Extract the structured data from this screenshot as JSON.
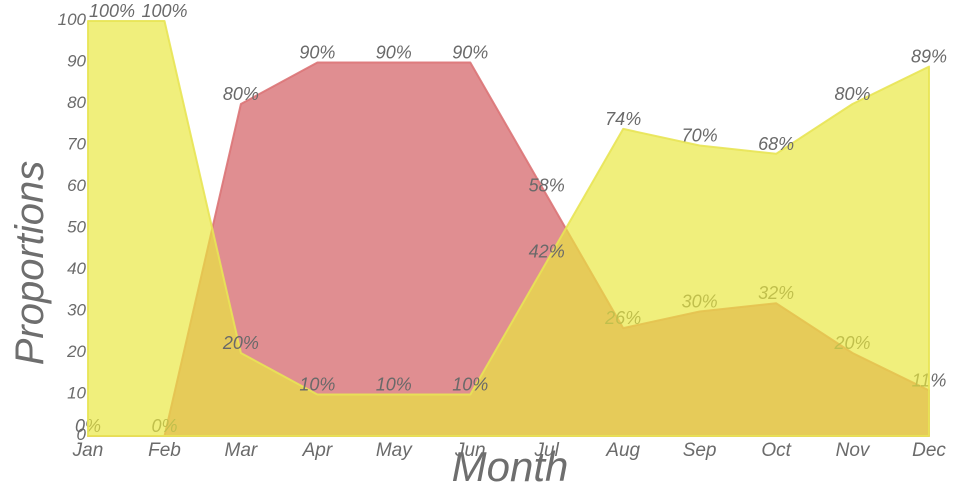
{
  "chart_data": {
    "type": "area",
    "title": "",
    "xlabel": "Month",
    "ylabel": "Proportions",
    "x": [
      "Jan",
      "Feb",
      "Mar",
      "Apr",
      "May",
      "Jun",
      "Jul",
      "Aug",
      "Sep",
      "Oct",
      "Nov",
      "Dec"
    ],
    "yticks": [
      0,
      10,
      20,
      30,
      40,
      50,
      60,
      70,
      80,
      90,
      100
    ],
    "ylim": [
      0,
      100
    ],
    "grid": false,
    "legend": false,
    "value_label_suffix": "%",
    "series": [
      {
        "name": "red",
        "fill_color": "#d05256",
        "fill_opacity": 0.65,
        "line_color": "#db7477",
        "values": [
          0,
          0,
          80,
          90,
          90,
          90,
          58,
          26,
          30,
          32,
          20,
          11
        ]
      },
      {
        "name": "yellow",
        "fill_color": "#e9e73e",
        "fill_opacity": 0.68,
        "line_color": "#e8e455",
        "values": [
          100,
          100,
          20,
          10,
          10,
          10,
          42,
          74,
          70,
          68,
          80,
          89
        ]
      }
    ],
    "colors": {
      "value_label": "#696969",
      "tick_label": "#6b6b6b",
      "axis_title": "#6e6e6e"
    }
  }
}
